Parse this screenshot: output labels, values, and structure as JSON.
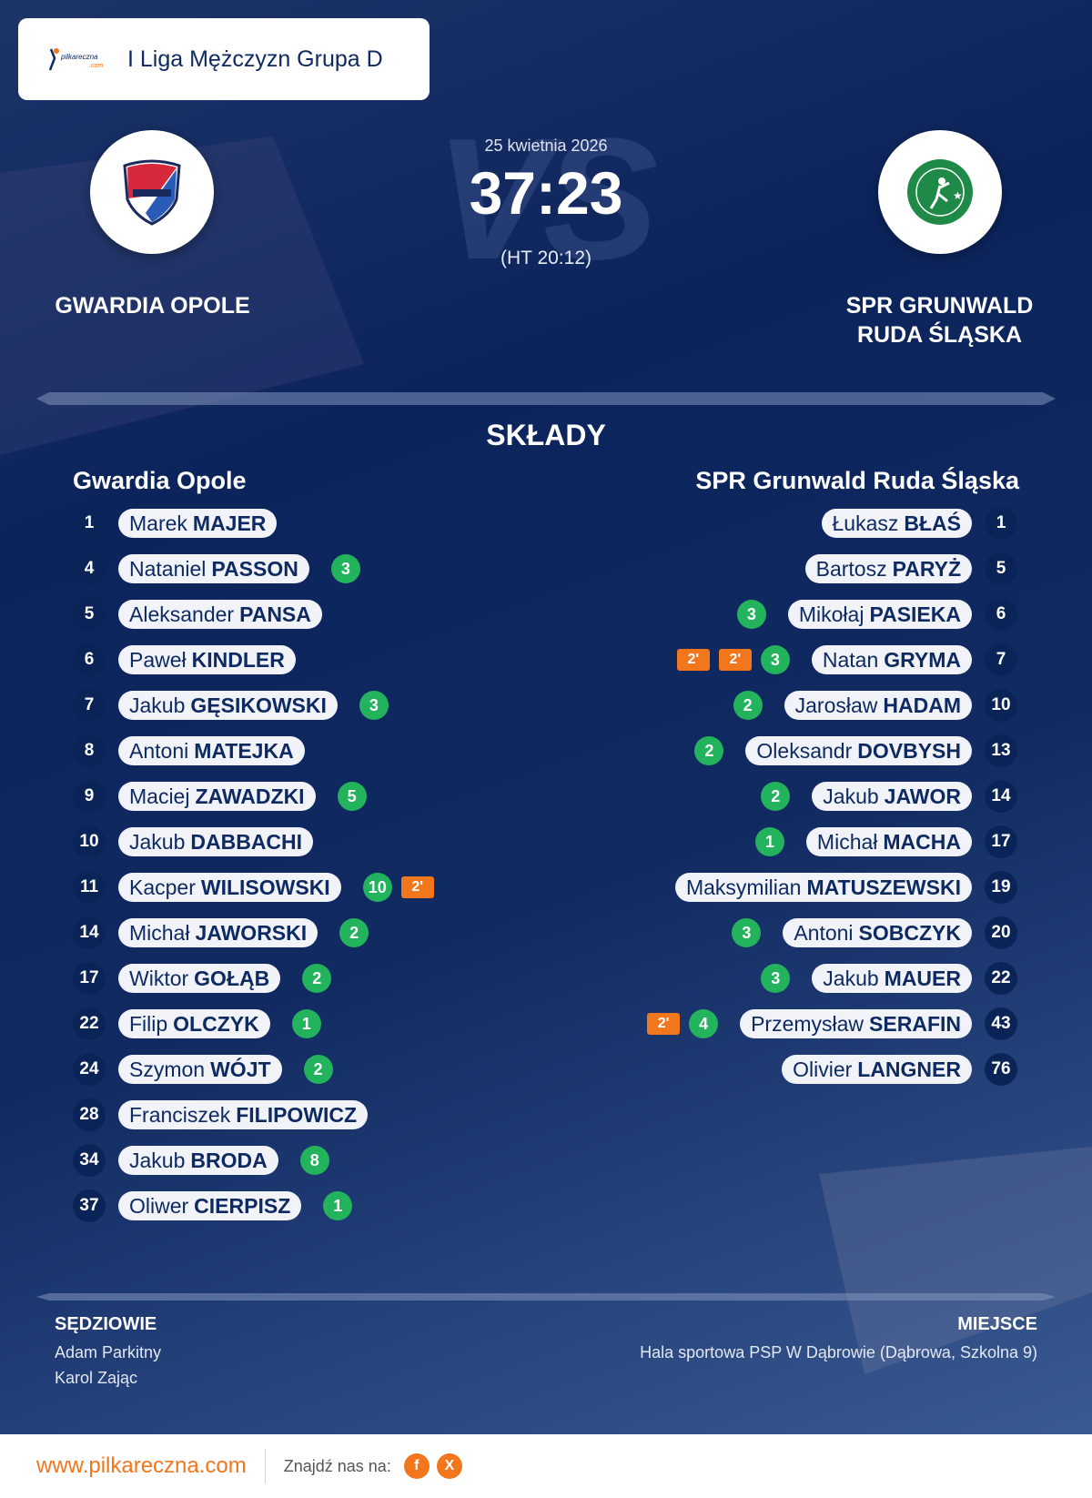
{
  "header": {
    "league": "I Liga Mężczyzn Grupa D",
    "logo_text": "pilkareczna.com"
  },
  "match": {
    "date": "25 kwietnia 2026",
    "score": "37:23",
    "halftime": "(HT 20:12)",
    "vs": "VS",
    "home": {
      "name": "GWARDIA OPOLE"
    },
    "away": {
      "name_line1": "SPR GRUNWALD",
      "name_line2": "RUDA ŚLĄSKA"
    }
  },
  "lineups": {
    "title": "SKŁADY",
    "home": {
      "team": "Gwardia Opole",
      "players": [
        {
          "no": "1",
          "first": "Marek",
          "last": "MAJER",
          "goals": null,
          "pens": []
        },
        {
          "no": "4",
          "first": "Nataniel",
          "last": "PASSON",
          "goals": "3",
          "pens": []
        },
        {
          "no": "5",
          "first": "Aleksander",
          "last": "PANSA",
          "goals": null,
          "pens": []
        },
        {
          "no": "6",
          "first": "Paweł",
          "last": "KINDLER",
          "goals": null,
          "pens": []
        },
        {
          "no": "7",
          "first": "Jakub",
          "last": "GĘSIKOWSKI",
          "goals": "3",
          "pens": []
        },
        {
          "no": "8",
          "first": "Antoni",
          "last": "MATEJKA",
          "goals": null,
          "pens": []
        },
        {
          "no": "9",
          "first": "Maciej",
          "last": "ZAWADZKI",
          "goals": "5",
          "pens": []
        },
        {
          "no": "10",
          "first": "Jakub",
          "last": "DABBACHI",
          "goals": null,
          "pens": []
        },
        {
          "no": "11",
          "first": "Kacper",
          "last": "WILISOWSKI",
          "goals": "10",
          "pens": [
            "2'"
          ]
        },
        {
          "no": "14",
          "first": "Michał",
          "last": "JAWORSKI",
          "goals": "2",
          "pens": []
        },
        {
          "no": "17",
          "first": "Wiktor",
          "last": "GOŁĄB",
          "goals": "2",
          "pens": []
        },
        {
          "no": "22",
          "first": "Filip",
          "last": "OLCZYK",
          "goals": "1",
          "pens": []
        },
        {
          "no": "24",
          "first": "Szymon",
          "last": "WÓJT",
          "goals": "2",
          "pens": []
        },
        {
          "no": "28",
          "first": "Franciszek",
          "last": "FILIPOWICZ",
          "goals": null,
          "pens": []
        },
        {
          "no": "34",
          "first": "Jakub",
          "last": "BRODA",
          "goals": "8",
          "pens": []
        },
        {
          "no": "37",
          "first": "Oliwer",
          "last": "CIERPISZ",
          "goals": "1",
          "pens": []
        }
      ]
    },
    "away": {
      "team": "SPR Grunwald Ruda Śląska",
      "players": [
        {
          "no": "1",
          "first": "Łukasz",
          "last": "BŁAŚ",
          "goals": null,
          "pens": []
        },
        {
          "no": "5",
          "first": "Bartosz",
          "last": "PARYŻ",
          "goals": null,
          "pens": []
        },
        {
          "no": "6",
          "first": "Mikołaj",
          "last": "PASIEKA",
          "goals": "3",
          "pens": []
        },
        {
          "no": "7",
          "first": "Natan",
          "last": "GRYMA",
          "goals": "3",
          "pens": [
            "2'",
            "2'"
          ]
        },
        {
          "no": "10",
          "first": "Jarosław",
          "last": "HADAM",
          "goals": "2",
          "pens": []
        },
        {
          "no": "13",
          "first": "Oleksandr",
          "last": "DOVBYSH",
          "goals": "2",
          "pens": []
        },
        {
          "no": "14",
          "first": "Jakub",
          "last": "JAWOR",
          "goals": "2",
          "pens": []
        },
        {
          "no": "17",
          "first": "Michał",
          "last": "MACHA",
          "goals": "1",
          "pens": []
        },
        {
          "no": "19",
          "first": "Maksymilian",
          "last": "MATUSZEWSKI",
          "goals": null,
          "pens": []
        },
        {
          "no": "20",
          "first": "Antoni",
          "last": "SOBCZYK",
          "goals": "3",
          "pens": []
        },
        {
          "no": "22",
          "first": "Jakub",
          "last": "MAUER",
          "goals": "3",
          "pens": []
        },
        {
          "no": "43",
          "first": "Przemysław",
          "last": "SERAFIN",
          "goals": "4",
          "pens": [
            "2'"
          ]
        },
        {
          "no": "76",
          "first": "Olivier",
          "last": "LANGNER",
          "goals": null,
          "pens": []
        }
      ]
    }
  },
  "officials": {
    "title": "SĘDZIOWIE",
    "names": [
      "Adam Parkitny",
      "Karol Zając"
    ]
  },
  "venue": {
    "title": "MIEJSCE",
    "text": "Hala sportowa PSP W Dąbrowie (Dąbrowa, Szkolna 9)"
  },
  "footer": {
    "site": "www.pilkareczna.com",
    "find_us": "Znajdź nas na:",
    "social": [
      {
        "icon": "facebook-icon",
        "label": "f"
      },
      {
        "icon": "x-icon",
        "label": "X"
      }
    ]
  },
  "colors": {
    "goal": "#22b35c",
    "penalty": "#f2761b",
    "navy": "#0c245c"
  }
}
